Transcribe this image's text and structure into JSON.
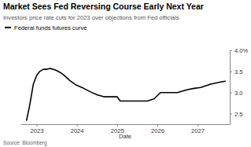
{
  "chart_data": {
    "type": "line",
    "title": "Market Sees Fed Reversing Course Early Next Year",
    "subtitle": "Investors price rate cuts for 2023 over objections from Fed officials",
    "xlabel": "Date",
    "source": "Source: Bloomberg",
    "x": [
      2022.75,
      2022.83,
      2022.92,
      2023.0,
      2023.08,
      2023.17,
      2023.25,
      2023.33,
      2023.42,
      2023.5,
      2023.58,
      2023.67,
      2023.75,
      2023.83,
      2023.92,
      2024.0,
      2024.17,
      2024.33,
      2024.5,
      2024.67,
      2024.83,
      2025.0,
      2025.08,
      2025.5,
      2025.75,
      2025.92,
      2026.08,
      2026.5,
      2026.75,
      2026.92,
      2027.08,
      2027.33,
      2027.58,
      2027.7
    ],
    "series": [
      {
        "name": "Federal funds futures curve",
        "color": "#000000",
        "values": [
          2.33,
          2.7,
          3.2,
          3.4,
          3.5,
          3.55,
          3.55,
          3.57,
          3.55,
          3.52,
          3.48,
          3.42,
          3.35,
          3.28,
          3.22,
          3.17,
          3.1,
          3.02,
          2.95,
          2.9,
          2.9,
          2.9,
          2.8,
          2.8,
          2.8,
          2.85,
          3.0,
          3.0,
          3.07,
          3.1,
          3.12,
          3.2,
          3.25,
          3.27
        ]
      }
    ],
    "xlim": [
      2022.6,
      2027.8
    ],
    "xticks": [
      2023,
      2024,
      2025,
      2026,
      2027
    ],
    "ylim": [
      2.25,
      4.0
    ],
    "yticks": [
      2.5,
      {
        "value": 3,
        "label": "3.0"
      },
      {
        "value": 3.5,
        "label": "3.5"
      },
      {
        "value": 4,
        "label": "4.0%"
      }
    ],
    "legend": "upper left",
    "grid": false
  }
}
